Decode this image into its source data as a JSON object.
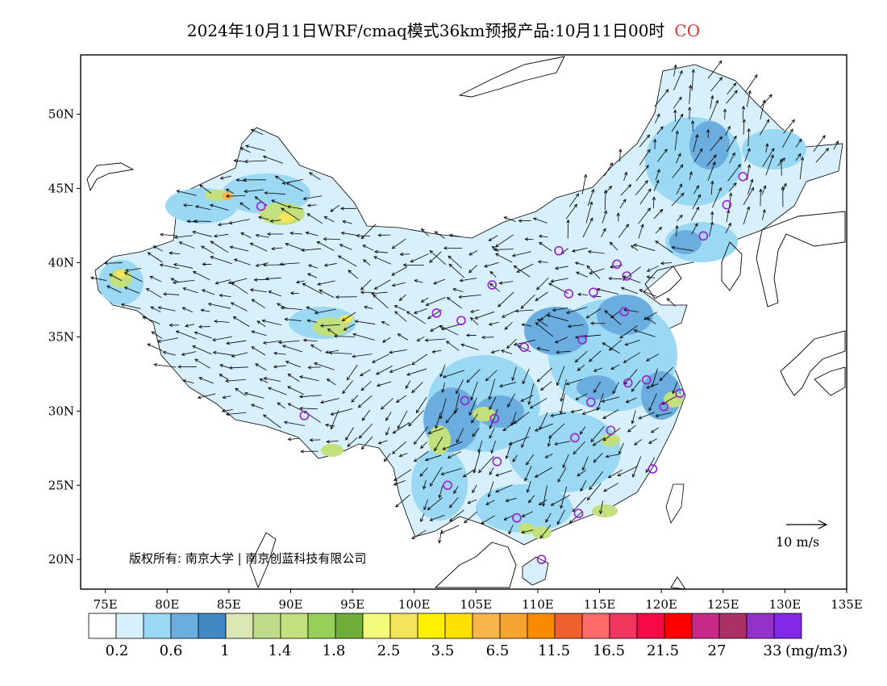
{
  "title": {
    "text": "2024年10月11日WRF/cmaq模式36km预报产品:10月11日00时",
    "species": "CO"
  },
  "colors": {
    "coastline": "#000000",
    "station_circle": "#9a1fd6",
    "china_fill": "#d8f0fb",
    "species_text": "#e03030"
  },
  "map": {
    "lon_ticks": [
      "75E",
      "80E",
      "85E",
      "90E",
      "95E",
      "100E",
      "105E",
      "110E",
      "115E",
      "120E",
      "125E",
      "130E",
      "135E"
    ],
    "lat_ticks": [
      "50N",
      "45N",
      "40N",
      "35N",
      "30N",
      "25N",
      "20N"
    ],
    "lon_range": [
      73,
      135
    ],
    "lat_range": [
      18,
      54
    ],
    "credit": "版权所有: 南京大学 | 南京创蓝科技有限公司",
    "wind_ref_label": "10 m/s"
  },
  "stations": [
    {
      "lon": 87.6,
      "lat": 43.8
    },
    {
      "lon": 91.1,
      "lat": 29.7
    },
    {
      "lon": 101.8,
      "lat": 36.6
    },
    {
      "lon": 103.8,
      "lat": 36.1
    },
    {
      "lon": 106.3,
      "lat": 38.5
    },
    {
      "lon": 111.7,
      "lat": 40.8
    },
    {
      "lon": 112.5,
      "lat": 37.9
    },
    {
      "lon": 114.5,
      "lat": 38.0
    },
    {
      "lon": 116.4,
      "lat": 39.9
    },
    {
      "lon": 117.2,
      "lat": 39.1
    },
    {
      "lon": 123.4,
      "lat": 41.8
    },
    {
      "lon": 125.3,
      "lat": 43.9
    },
    {
      "lon": 126.6,
      "lat": 45.8
    },
    {
      "lon": 117.0,
      "lat": 36.7
    },
    {
      "lon": 113.6,
      "lat": 34.8
    },
    {
      "lon": 108.9,
      "lat": 34.3
    },
    {
      "lon": 104.1,
      "lat": 30.7
    },
    {
      "lon": 106.5,
      "lat": 29.5
    },
    {
      "lon": 114.3,
      "lat": 30.6
    },
    {
      "lon": 117.3,
      "lat": 31.9
    },
    {
      "lon": 118.8,
      "lat": 32.1
    },
    {
      "lon": 121.5,
      "lat": 31.2
    },
    {
      "lon": 120.2,
      "lat": 30.3
    },
    {
      "lon": 115.9,
      "lat": 28.7
    },
    {
      "lon": 113.0,
      "lat": 28.2
    },
    {
      "lon": 106.7,
      "lat": 26.6
    },
    {
      "lon": 102.7,
      "lat": 25.0
    },
    {
      "lon": 119.3,
      "lat": 26.1
    },
    {
      "lon": 113.3,
      "lat": 23.1
    },
    {
      "lon": 108.3,
      "lat": 22.8
    },
    {
      "lon": 110.3,
      "lat": 20.0
    }
  ],
  "colorbar": {
    "colors": [
      "#ffffff",
      "#d8f0fb",
      "#9bd8f4",
      "#6badde",
      "#4189c3",
      "#dbe8b6",
      "#bfdc8a",
      "#c3e07e",
      "#96d05a",
      "#6fad3a",
      "#f2fb7a",
      "#f3e45c",
      "#fff000",
      "#ffe000",
      "#f8b64a",
      "#f5a430",
      "#fa8a00",
      "#f0602e",
      "#fe6a6a",
      "#f33660",
      "#f50a45",
      "#fe0000",
      "#c82887",
      "#aa3066",
      "#9232c8",
      "#8228e6"
    ],
    "labels": [
      "0.2",
      "0.6",
      "1",
      "1.4",
      "1.8",
      "2.5",
      "3.5",
      "6.5",
      "11.5",
      "16.5",
      "21.5",
      "27",
      "33"
    ],
    "unit": "(mg/m3)"
  }
}
